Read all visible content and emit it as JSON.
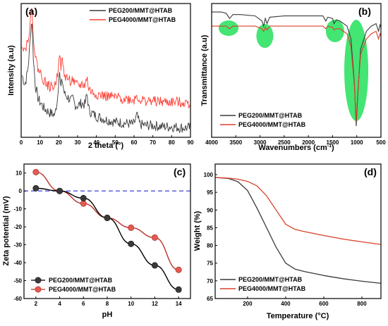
{
  "colors": {
    "peg200": "#3a3a3a",
    "peg4000": "#d9402b",
    "peg4000_xrd": "#ff3b30",
    "highlight": "#22e05a",
    "zero_line": "#2b2bd4"
  },
  "chart_data": [
    {
      "panel": "(a)",
      "type": "line",
      "xlabel": "2 theta (°)",
      "ylabel": "Intensity (a.u)",
      "xlim": [
        0,
        90
      ],
      "xticks": [
        0,
        10,
        20,
        30,
        40,
        50,
        60,
        70,
        80,
        90
      ],
      "yticks_shown": false,
      "legend_position": "top-right",
      "series": [
        {
          "name": "PEG200/MMT@HTAB",
          "x": [
            0.5,
            2,
            3.5,
            4.5,
            5.2,
            5.8,
            6.5,
            7.5,
            9,
            12,
            15,
            18,
            19.5,
            20.3,
            21,
            21.8,
            23,
            25,
            26.5,
            27.5,
            28.5,
            30,
            32,
            34,
            35,
            36,
            38,
            40,
            45,
            50,
            55,
            60,
            61.5,
            63,
            66,
            70,
            75,
            80,
            85,
            90
          ],
          "y": [
            52,
            44,
            56,
            75,
            94,
            99,
            66,
            44,
            32,
            24,
            20,
            18,
            35,
            60,
            40,
            48,
            36,
            33,
            30,
            32,
            27,
            26,
            28,
            27,
            37,
            22,
            19,
            17,
            14,
            12,
            11,
            10,
            18,
            10,
            9,
            9,
            8,
            8,
            7,
            7
          ]
        },
        {
          "name": "PEG4000/MMT@HTAB",
          "x": [
            0.5,
            2,
            3.5,
            4.5,
            5.2,
            5.8,
            6.5,
            7.5,
            9,
            12,
            15,
            18,
            19.5,
            20.3,
            21,
            21.8,
            23,
            25,
            26.5,
            27.5,
            28.5,
            30,
            32,
            34,
            35,
            36,
            38,
            40,
            45,
            50,
            55,
            60,
            61.5,
            63,
            66,
            70,
            75,
            80,
            85,
            90
          ],
          "y": [
            80,
            74,
            82,
            94,
            104,
            107,
            86,
            68,
            58,
            48,
            42,
            43,
            55,
            76,
            58,
            65,
            52,
            49,
            47,
            49,
            44,
            43,
            44,
            44,
            50,
            40,
            37,
            36,
            34,
            33,
            32,
            31,
            35,
            31,
            30,
            30,
            29,
            29,
            29,
            28
          ]
        }
      ]
    },
    {
      "panel": "(b)",
      "type": "line",
      "xlabel": "Wavenumbers (cm",
      "xlabel_sup": "-1",
      "xlabel_end": ")",
      "ylabel": "Transmittance (a.u)",
      "xlim": [
        4000,
        500
      ],
      "xticks": [
        4000,
        3500,
        3000,
        2500,
        2000,
        1500,
        1000,
        500
      ],
      "yticks_shown": false,
      "legend_position": "bottom-left",
      "highlight_bands": [
        3650,
        2900,
        1450,
        1010
      ],
      "series": [
        {
          "name": "PEG200/MMT@HTAB",
          "x": [
            4000,
            3800,
            3700,
            3630,
            3560,
            3400,
            3100,
            2960,
            2925,
            2890,
            2855,
            2800,
            2500,
            2000,
            1700,
            1640,
            1600,
            1500,
            1470,
            1420,
            1350,
            1200,
            1120,
            1050,
            1010,
            980,
            920,
            800,
            700,
            600,
            550,
            520,
            500
          ],
          "y": [
            95,
            95,
            94,
            90,
            93,
            93,
            92,
            88,
            84,
            90,
            86,
            91,
            92,
            92,
            92,
            88,
            91,
            90,
            86,
            89,
            88,
            84,
            74,
            40,
            6,
            30,
            66,
            80,
            84,
            86,
            80,
            85,
            83
          ]
        },
        {
          "name": "PEG4000/MMT@HTAB",
          "x": [
            4000,
            3800,
            3700,
            3630,
            3560,
            3400,
            3100,
            2960,
            2925,
            2890,
            2855,
            2800,
            2500,
            2000,
            1700,
            1640,
            1600,
            1500,
            1470,
            1420,
            1350,
            1200,
            1120,
            1050,
            1010,
            980,
            920,
            800,
            700,
            600,
            550,
            520,
            500
          ],
          "y": [
            84,
            84,
            84,
            82,
            84,
            84,
            84,
            82,
            80,
            83,
            81,
            84,
            84,
            84,
            84,
            82,
            84,
            83,
            81,
            82,
            82,
            78,
            68,
            38,
            10,
            32,
            62,
            74,
            78,
            80,
            74,
            78,
            76
          ]
        }
      ]
    },
    {
      "panel": "(c)",
      "type": "line",
      "xlabel": "pH",
      "ylabel": "Zeta potential (mV)",
      "xlim": [
        1,
        15
      ],
      "ylim": [
        -60,
        15
      ],
      "xticks": [
        2,
        4,
        6,
        8,
        10,
        12,
        14
      ],
      "yticks": [
        10,
        0,
        -10,
        -20,
        -30,
        -40,
        -50,
        -60
      ],
      "zero_line": true,
      "legend_position": "bottom-left",
      "categories": [
        2,
        4,
        6,
        8,
        10,
        12,
        14
      ],
      "series": [
        {
          "name": "PEG200/MMT@HTAB",
          "values": [
            1.5,
            0,
            -4,
            -15,
            -29.5,
            -41.5,
            -55
          ]
        },
        {
          "name": "PEG4000/MMT@HTAB",
          "values": [
            10.5,
            0,
            -7,
            -15,
            -20.5,
            -26,
            -44
          ]
        }
      ]
    },
    {
      "panel": "(d)",
      "type": "line",
      "xlabel": "Temperature (°C)",
      "ylabel": "Weight (%)",
      "xlim": [
        30,
        900
      ],
      "ylim": [
        65,
        100
      ],
      "xticks": [
        200,
        400,
        600,
        800
      ],
      "yticks": [
        100,
        95,
        90,
        85,
        80,
        75,
        70,
        65
      ],
      "legend_position": "bottom-left",
      "series": [
        {
          "name": "PEG200/MMT@HTAB",
          "x": [
            30,
            100,
            150,
            200,
            250,
            300,
            350,
            400,
            450,
            500,
            600,
            700,
            800,
            900
          ],
          "y": [
            99.2,
            98.9,
            98.0,
            95.5,
            90.5,
            85.0,
            79.5,
            75.0,
            73.3,
            72.6,
            71.5,
            70.6,
            69.9,
            69.3
          ]
        },
        {
          "name": "PEG4000/MMT@HTAB",
          "x": [
            30,
            100,
            150,
            200,
            250,
            300,
            350,
            400,
            450,
            500,
            600,
            700,
            800,
            900
          ],
          "y": [
            99.2,
            99.0,
            98.7,
            98.1,
            96.8,
            94.0,
            90.0,
            86.0,
            84.5,
            83.9,
            82.8,
            81.8,
            81.0,
            80.3
          ]
        }
      ]
    }
  ]
}
